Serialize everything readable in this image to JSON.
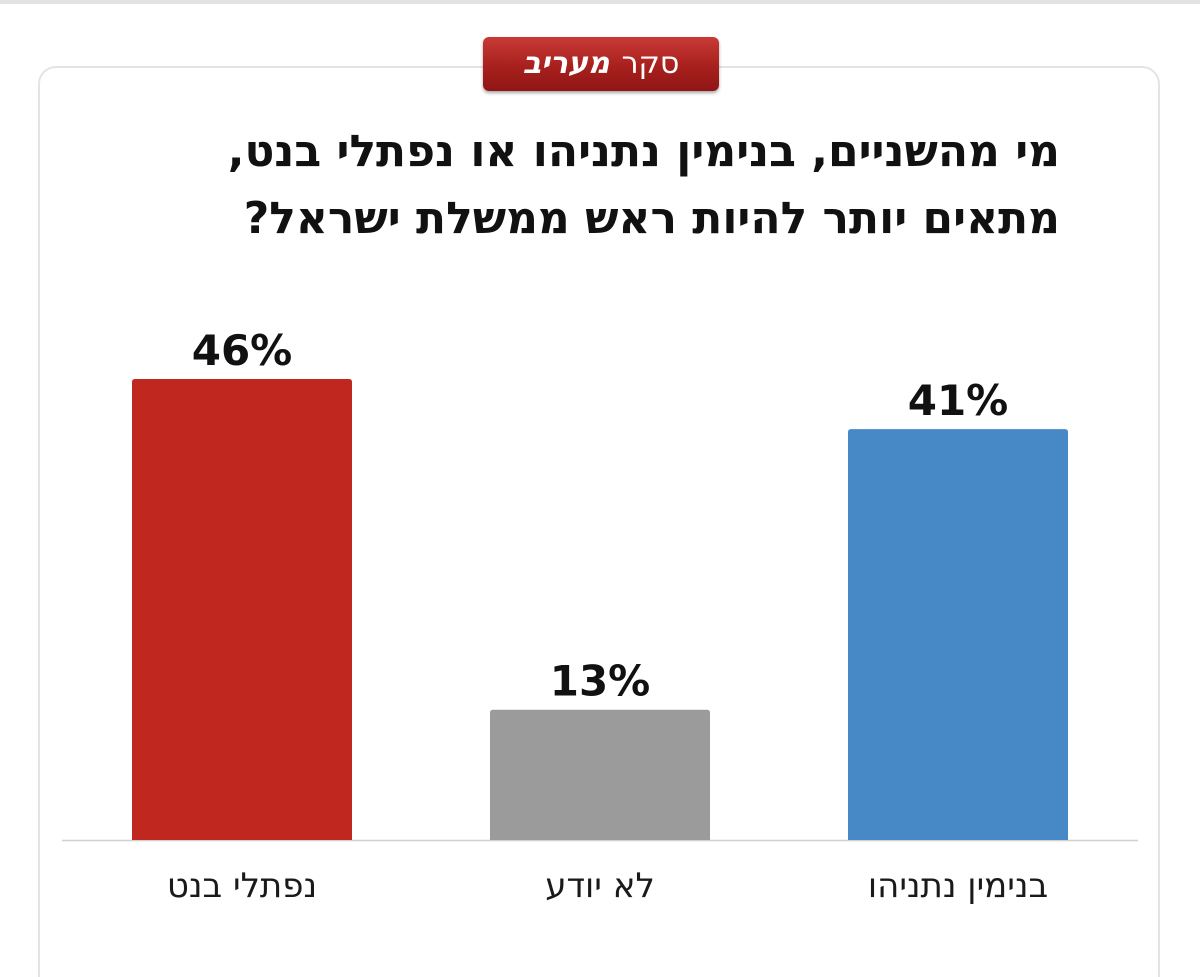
{
  "badge": {
    "prefix": "סקר",
    "brand": "מעריב"
  },
  "title": {
    "line1": "מי מהשניים, בנימין נתניהו או נפתלי בנט,",
    "line2": "מתאים יותר להיות ראש ממשלת ישראל?"
  },
  "chart_data": {
    "type": "bar",
    "title": "מי מהשניים, בנימין נתניהו או נפתלי בנט, מתאים יותר להיות ראש ממשלת ישראל?",
    "categories": [
      "נפתלי בנט",
      "לא יודע",
      "בנימין נתניהו"
    ],
    "values": [
      46,
      13,
      41
    ],
    "value_labels": [
      "46%",
      "13%",
      "41%"
    ],
    "colors": [
      "#c0281f",
      "#9b9b9b",
      "#4689c6"
    ],
    "unit": "%",
    "ylim": [
      0,
      46
    ],
    "grid": false,
    "legend": "none",
    "xlabel": "",
    "ylabel": ""
  }
}
